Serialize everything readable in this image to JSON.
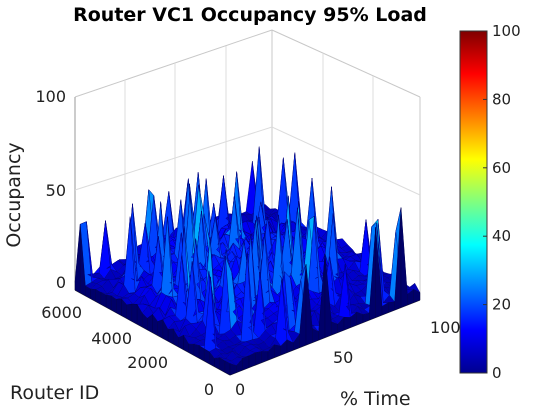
{
  "chart_data": {
    "type": "surface3d",
    "title": "Router VC1 Occupancy 95% Load",
    "x_axis": {
      "label": "% Time",
      "range": [
        0,
        100
      ],
      "ticks": [
        "0",
        "50",
        "100"
      ]
    },
    "y_axis": {
      "label": "Router ID",
      "range": [
        0,
        6500
      ],
      "ticks": [
        "0",
        "2000",
        "4000",
        "6000"
      ]
    },
    "z_axis": {
      "label": "Occupancy",
      "range": [
        0,
        100
      ],
      "ticks": [
        "0",
        "50",
        "100"
      ]
    },
    "colorbar": {
      "range": [
        0,
        100
      ],
      "ticks": [
        "0",
        "20",
        "40",
        "60",
        "80",
        "100"
      ],
      "colormap": "jet"
    },
    "surface_summary": {
      "typical_value": 18,
      "min_value": 0,
      "max_value": 52
    }
  }
}
